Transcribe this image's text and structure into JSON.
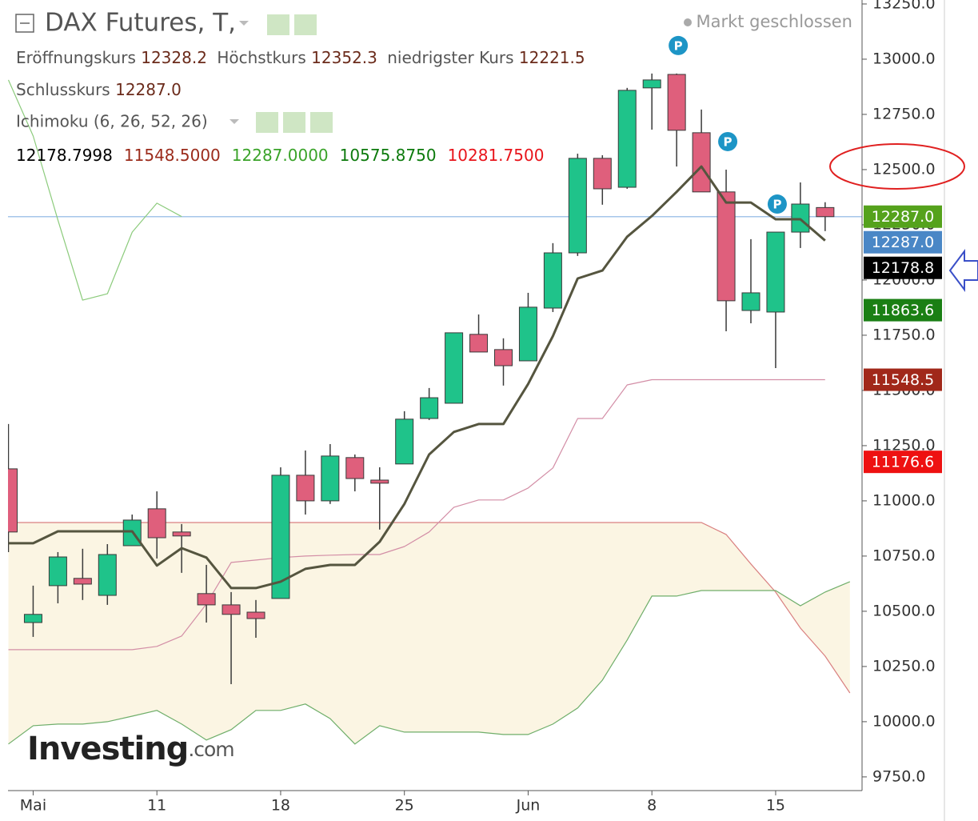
{
  "header": {
    "title": "DAX Futures, T,",
    "status": "Markt geschlossen",
    "ohlc": [
      {
        "label": "Eröffnungskurs",
        "value": "12328.2"
      },
      {
        "label": "Höchstkurs",
        "value": "12352.3"
      },
      {
        "label": "niedrigster Kurs",
        "value": "12221.5"
      },
      {
        "label": "Schlusskurs",
        "value": "12287.0"
      }
    ],
    "indicator": "Ichimoku (6, 26, 52, 26)",
    "indicator_values": [
      {
        "text": "12178.7998",
        "color": "#000000"
      },
      {
        "text": "11548.5000",
        "color": "#9b2b1b"
      },
      {
        "text": "12287.0000",
        "color": "#3aa329"
      },
      {
        "text": "10575.8750",
        "color": "#0c7a0c"
      },
      {
        "text": "10281.7500",
        "color": "#e8141b"
      }
    ],
    "logo": {
      "name": "Investing",
      "suffix": ".com"
    }
  },
  "chart_data": {
    "type": "candlestick",
    "categories": [
      null,
      "Mai",
      null,
      null,
      null,
      null,
      "11",
      null,
      null,
      null,
      null,
      "18",
      null,
      null,
      null,
      null,
      "25",
      null,
      null,
      null,
      null,
      "Jun",
      null,
      null,
      null,
      null,
      "8",
      null,
      null,
      null,
      null,
      "15",
      null,
      null,
      null
    ],
    "open": [
      11145,
      10449,
      10616,
      10649,
      10572,
      10797,
      10964,
      10859,
      10580,
      10529,
      10496,
      10558,
      11116,
      11000,
      11196,
      11094,
      11167,
      11373,
      11442,
      11754,
      11685,
      11634,
      11873,
      12123,
      12551,
      12420,
      12870,
      12931,
      12667,
      12399,
      11862,
      11855,
      12217,
      12328.2,
      null
    ],
    "high": [
      11348,
      10616,
      10768,
      10783,
      10804,
      10938,
      11043,
      10895,
      10710,
      10587,
      10551,
      11152,
      11228,
      11257,
      11210,
      11152,
      11406,
      11511,
      11761,
      11844,
      11736,
      11942,
      12167,
      12572,
      12565,
      12870,
      12935,
      12935,
      12772,
      12500,
      12185,
      12217,
      12442,
      12352.3,
      null
    ],
    "low": [
      10768,
      10384,
      10536,
      10551,
      10529,
      10797,
      10739,
      10674,
      10449,
      10170,
      10380,
      10558,
      10938,
      10986,
      11043,
      10870,
      11167,
      11366,
      11442,
      11674,
      11522,
      11634,
      11855,
      12109,
      12341,
      12413,
      12681,
      12514,
      12399,
      11768,
      11804,
      11601,
      12145,
      12221.5,
      null
    ],
    "close": [
      10859,
      10486,
      10746,
      10623,
      10757,
      10913,
      10833,
      10841,
      10529,
      10486,
      10467,
      11116,
      11000,
      11203,
      11101,
      11080,
      11370,
      11467,
      11761,
      11674,
      11612,
      11877,
      12123,
      12551,
      12413,
      12859,
      12906,
      12678,
      12399,
      11906,
      11942,
      12217,
      12344,
      12287.0,
      null
    ],
    "up_color": "#1fc38a",
    "down_color": "#df5f7c",
    "badges": [
      null,
      null,
      null,
      null,
      null,
      null,
      null,
      null,
      null,
      null,
      null,
      null,
      null,
      null,
      null,
      null,
      null,
      null,
      null,
      null,
      null,
      null,
      null,
      null,
      null,
      null,
      null,
      "P",
      null,
      "P",
      null,
      "P",
      null,
      null,
      null
    ],
    "ylim": [
      9688,
      13268
    ],
    "yticks": [
      {
        "value": 9750,
        "label": "9750.0"
      },
      {
        "value": 10000,
        "label": "10000.0"
      },
      {
        "value": 10250,
        "label": "10250.0"
      },
      {
        "value": 10500,
        "label": "10500.0"
      },
      {
        "value": 10750,
        "label": "10750.0"
      },
      {
        "value": 11000,
        "label": "11000.0"
      },
      {
        "value": 11250,
        "label": "11250.0"
      },
      {
        "value": 11500,
        "label": "11500.0"
      },
      {
        "value": 11750,
        "label": "11750.0"
      },
      {
        "value": 12000,
        "label": "12000.0"
      },
      {
        "value": 12250,
        "label": "12250.0"
      },
      {
        "value": 12500,
        "label": "12500.0"
      },
      {
        "value": 12750,
        "label": "12750.0"
      },
      {
        "value": 13000,
        "label": "13000.0"
      },
      {
        "value": 13250,
        "label": "13250.0"
      }
    ],
    "cloud": {
      "fill": "#fbf5e3",
      "upper": {
        "color": "#d98080",
        "values": [
          10902,
          10902,
          10902,
          10902,
          10902,
          10902,
          10902,
          10902,
          10902,
          10902,
          10902,
          10902,
          10902,
          10902,
          10902,
          10902,
          10902,
          10902,
          10902,
          10902,
          10902,
          10902,
          10902,
          10902,
          10902,
          10902,
          10902,
          10902,
          10902,
          10848,
          10714,
          10587,
          10424,
          10297,
          10130
        ]
      },
      "lower": {
        "color": "#6fae6a",
        "values": [
          9899,
          9982,
          9989,
          9989,
          10000,
          10025,
          10051,
          9989,
          9917,
          9964,
          10051,
          10051,
          10080,
          10014,
          9899,
          9982,
          9953,
          9953,
          9953,
          9953,
          9942,
          9942,
          9989,
          10062,
          10188,
          10370,
          10569,
          10569,
          10594,
          10594,
          10594,
          10594,
          10525,
          10587,
          10634
        ]
      }
    },
    "lines": [
      {
        "color": "#d38ea6",
        "width": 1.2,
        "values": [
          10326,
          10326,
          10326,
          10326,
          10326,
          10326,
          10341,
          10388,
          10533,
          10721,
          10732,
          10743,
          10750,
          10754,
          10757,
          10757,
          10793,
          10859,
          10971,
          11004,
          11004,
          11058,
          11149,
          11373,
          11373,
          11525,
          11548.5,
          11548.5,
          11548.5,
          11548.5,
          11548.5,
          11548.5,
          11548.5,
          11548.5,
          null
        ]
      },
      {
        "color": "#8ccb7c",
        "width": 1.2,
        "values": [
          12906,
          12652,
          12272,
          11909,
          11938,
          12217,
          12348,
          12287,
          null,
          null,
          null,
          null,
          null,
          null,
          null,
          null,
          null,
          null,
          null,
          null,
          null,
          null,
          null,
          null,
          null,
          null,
          null,
          null,
          null,
          null,
          null,
          null,
          null,
          null,
          null
        ]
      },
      {
        "color": "#55553f",
        "width": 3,
        "values": [
          10808,
          10808,
          10862,
          10862,
          10862,
          10862,
          10707,
          10786,
          10743,
          10605,
          10605,
          10634,
          10692,
          10710,
          10710,
          10815,
          10986,
          11210,
          11312,
          11348,
          11348,
          11529,
          11746,
          12007,
          12043,
          12196,
          12290,
          12399,
          12514,
          12351,
          12351,
          12275,
          12275,
          12178.8,
          null
        ]
      }
    ],
    "price_line": {
      "value": 12287,
      "color": "#a6c6ea"
    },
    "price_tags": [
      {
        "value": 12287,
        "label": "12287.0",
        "color": "#55a21c"
      },
      {
        "value": 12287,
        "label": "12287.0",
        "color": "#4a87c6"
      },
      {
        "value": 12178.8,
        "label": "12178.8",
        "color": "#000000"
      },
      {
        "value": 11863.6,
        "label": "11863.6",
        "color": "#1a7f14"
      },
      {
        "value": 11548.5,
        "label": "11548.5",
        "color": "#a1281a"
      },
      {
        "value": 11176.6,
        "label": "11176.6",
        "color": "#ee1111"
      }
    ]
  }
}
